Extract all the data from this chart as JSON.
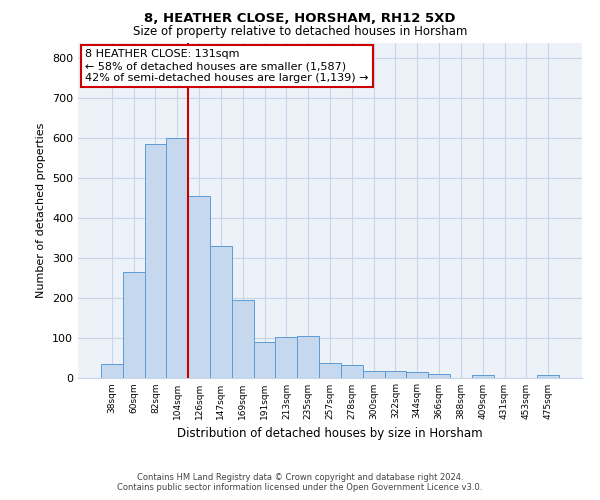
{
  "title": "8, HEATHER CLOSE, HORSHAM, RH12 5XD",
  "subtitle": "Size of property relative to detached houses in Horsham",
  "xlabel": "Distribution of detached houses by size in Horsham",
  "ylabel": "Number of detached properties",
  "footer_line1": "Contains HM Land Registry data © Crown copyright and database right 2024.",
  "footer_line2": "Contains public sector information licensed under the Open Government Licence v3.0.",
  "bar_labels": [
    "38sqm",
    "60sqm",
    "82sqm",
    "104sqm",
    "126sqm",
    "147sqm",
    "169sqm",
    "191sqm",
    "213sqm",
    "235sqm",
    "257sqm",
    "278sqm",
    "300sqm",
    "322sqm",
    "344sqm",
    "366sqm",
    "388sqm",
    "409sqm",
    "431sqm",
    "453sqm",
    "475sqm"
  ],
  "bar_values": [
    35,
    265,
    585,
    600,
    455,
    330,
    195,
    90,
    102,
    105,
    36,
    32,
    17,
    17,
    13,
    10,
    0,
    6,
    0,
    0,
    7
  ],
  "bar_color": "#c5d8ed",
  "bar_edge_color": "#5b9bd5",
  "ylim": [
    0,
    840
  ],
  "yticks": [
    0,
    100,
    200,
    300,
    400,
    500,
    600,
    700,
    800
  ],
  "annotation_title": "8 HEATHER CLOSE: 131sqm",
  "annotation_line1": "← 58% of detached houses are smaller (1,587)",
  "annotation_line2": "42% of semi-detached houses are larger (1,139) →",
  "annotation_box_color": "#ffffff",
  "annotation_box_edge_color": "#cc0000",
  "vline_color": "#cc0000",
  "grid_color": "#c8d4e8",
  "bg_color": "#edf2f9",
  "title_fontsize": 9.5,
  "subtitle_fontsize": 8.5
}
